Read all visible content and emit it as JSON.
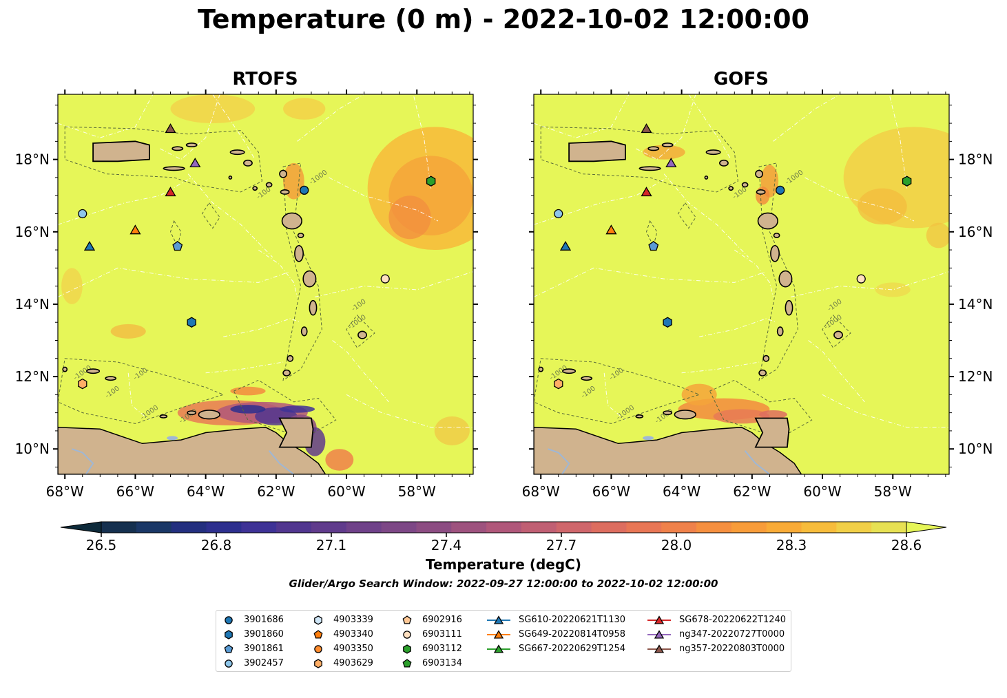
{
  "title": "Temperature (0 m) - 2022-10-02 12:00:00",
  "panels": [
    {
      "title": "RTOFS"
    },
    {
      "title": "GOFS"
    }
  ],
  "map": {
    "lon_range": [
      -68.2,
      -56.4
    ],
    "lat_range": [
      9.3,
      19.8
    ],
    "lon_ticks": [
      "68°W",
      "66°W",
      "64°W",
      "62°W",
      "60°W",
      "58°W"
    ],
    "lat_ticks": [
      "18°N",
      "16°N",
      "14°N",
      "12°N",
      "10°N"
    ],
    "contour_labels": [
      "-100",
      "-1000"
    ],
    "colors": {
      "ocean_warm": "#e6f658",
      "land": "#d0b38e",
      "coast": "#000000",
      "eez": "#ffffff"
    }
  },
  "colorbar": {
    "label": "Temperature (degC)",
    "range": [
      26.5,
      28.6
    ],
    "ticks": [
      "26.5",
      "26.8",
      "27.1",
      "27.4",
      "27.7",
      "28.0",
      "28.3",
      "28.6"
    ],
    "colors": [
      "#0d2a3a",
      "#15304f",
      "#1a3766",
      "#232f7f",
      "#2d2f8e",
      "#3e3296",
      "#51368f",
      "#603b8c",
      "#6f4189",
      "#7d4786",
      "#8c4c82",
      "#9e527e",
      "#b0577a",
      "#c05f73",
      "#cf666b",
      "#dd6d5f",
      "#e87655",
      "#ef814a",
      "#f58f3f",
      "#f89c39",
      "#f9ab37",
      "#f7bc3b",
      "#f1cf47",
      "#e7e153",
      "#e6f658"
    ]
  },
  "search_window": "Glider/Argo Search Window: 2022-09-27 12:00:00 to 2022-10-02 12:00:00",
  "legend": {
    "columns": [
      [
        {
          "label": "3901686",
          "marker": "circle",
          "color": "#1f77b4"
        },
        {
          "label": "3901860",
          "marker": "hexagon",
          "color": "#1f77b4"
        },
        {
          "label": "3901861",
          "marker": "pentagon",
          "color": "#5a9bd4"
        },
        {
          "label": "3902457",
          "marker": "circle",
          "color": "#8ec6ea"
        }
      ],
      [
        {
          "label": "4903339",
          "marker": "hexagon",
          "color": "#cfe6f7"
        },
        {
          "label": "4903340",
          "marker": "pentagon",
          "color": "#ff7f0e"
        },
        {
          "label": "4903350",
          "marker": "circle",
          "color": "#ff8c2e"
        },
        {
          "label": "4903629",
          "marker": "hexagon",
          "color": "#ffae66"
        }
      ],
      [
        {
          "label": "6902916",
          "marker": "pentagon",
          "color": "#ffc896"
        },
        {
          "label": "6903111",
          "marker": "circle",
          "color": "#ffe0c0"
        },
        {
          "label": "6903112",
          "marker": "hexagon",
          "color": "#2ca02c"
        },
        {
          "label": "6903134",
          "marker": "pentagon",
          "color": "#2ca02c"
        }
      ],
      [
        {
          "label": "SG610-20220621T1130",
          "marker": "triangle",
          "color": "#1f77b4",
          "line": true
        },
        {
          "label": "SG649-20220814T0958",
          "marker": "triangle",
          "color": "#ff7f0e",
          "line": true
        },
        {
          "label": "SG667-20220629T1254",
          "marker": "triangle",
          "color": "#2ca02c",
          "line": true
        }
      ],
      [
        {
          "label": "SG678-20220622T1240",
          "marker": "triangle",
          "color": "#d62728",
          "line": true
        },
        {
          "label": "ng347-20220727T0000",
          "marker": "triangle",
          "color": "#9467bd",
          "line": true
        },
        {
          "label": "ng357-20220803T0000",
          "marker": "triangle",
          "color": "#8c564b",
          "line": true
        }
      ]
    ]
  },
  "observations": [
    {
      "id": "ng357-20220803T0000",
      "marker": "triangle",
      "color": "#8c564b",
      "lon": -65.0,
      "lat": 18.85
    },
    {
      "id": "ng347-20220727T0000",
      "marker": "triangle",
      "color": "#9467bd",
      "lon": -64.3,
      "lat": 17.9
    },
    {
      "id": "SG678-20220622T1240",
      "marker": "triangle",
      "color": "#d62728",
      "lon": -65.0,
      "lat": 17.1
    },
    {
      "id": "SG649-20220814T0958",
      "marker": "triangle",
      "color": "#ff7f0e",
      "lon": -66.0,
      "lat": 16.05
    },
    {
      "id": "SG610-20220621T1130",
      "marker": "triangle",
      "color": "#1f77b4",
      "lon": -67.3,
      "lat": 15.6
    },
    {
      "id": "3902457",
      "marker": "circle",
      "color": "#8ec6ea",
      "lon": -67.5,
      "lat": 16.5
    },
    {
      "id": "3901861",
      "marker": "pentagon",
      "color": "#5a9bd4",
      "lon": -64.8,
      "lat": 15.6
    },
    {
      "id": "3901860",
      "marker": "hexagon",
      "color": "#1f77b4",
      "lon": -64.4,
      "lat": 13.5
    },
    {
      "id": "3901686",
      "marker": "circle",
      "color": "#1f77b4",
      "lon": -61.2,
      "lat": 17.15
    },
    {
      "id": "6903112",
      "marker": "hexagon",
      "color": "#2ca02c",
      "lon": -57.6,
      "lat": 17.4
    },
    {
      "id": "6903111",
      "marker": "circle",
      "color": "#ffe0c0",
      "lon": -58.9,
      "lat": 14.7
    },
    {
      "id": "4903629",
      "marker": "hexagon",
      "color": "#ffae66",
      "lon": -67.5,
      "lat": 11.8
    }
  ]
}
